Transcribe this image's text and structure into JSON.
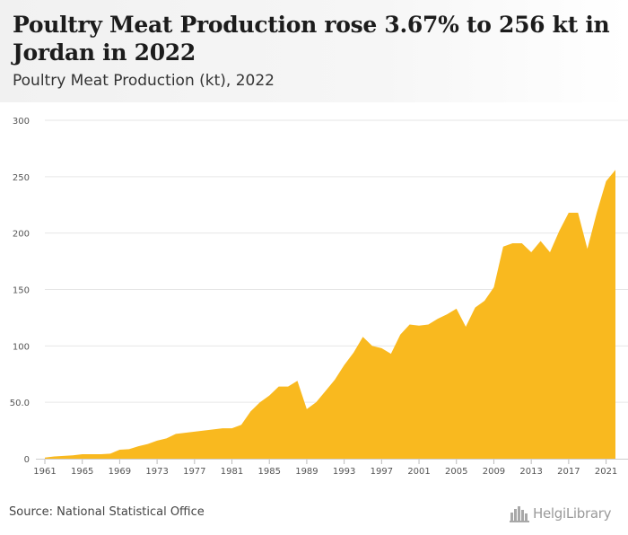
{
  "header": {
    "title": "Poultry Meat Production rose 3.67% to 256 kt in Jordan in 2022",
    "subtitle": "Poultry Meat Production (kt), 2022"
  },
  "footer": {
    "source": "Source: National Statistical Office",
    "brand": "HelgiLibrary"
  },
  "chart_data": {
    "type": "area",
    "title": "",
    "xlabel": "",
    "ylabel": "",
    "ylim": [
      0,
      300
    ],
    "yticks": [
      0,
      50,
      100,
      150,
      200,
      250,
      300
    ],
    "ytick_labels": [
      "0",
      "50.0",
      "100",
      "150",
      "200",
      "250",
      "300"
    ],
    "xticks": [
      1961,
      1965,
      1969,
      1973,
      1977,
      1981,
      1985,
      1989,
      1993,
      1997,
      2001,
      2005,
      2009,
      2013,
      2017,
      2021
    ],
    "grid": true,
    "color": "#f9b91f",
    "series": [
      {
        "x": [
          1961,
          1962,
          1963,
          1964,
          1965,
          1966,
          1967,
          1968,
          1969,
          1970,
          1971,
          1972,
          1973,
          1974,
          1975,
          1976,
          1977,
          1978,
          1979,
          1980,
          1981,
          1982,
          1983,
          1984,
          1985,
          1986,
          1987,
          1988,
          1989,
          1990,
          1991,
          1992,
          1993,
          1994,
          1995,
          1996,
          1997,
          1998,
          1999,
          2000,
          2001,
          2002,
          2003,
          2004,
          2005,
          2006,
          2007,
          2008,
          2009,
          2010,
          2011,
          2012,
          2013,
          2014,
          2015,
          2016,
          2017,
          2018,
          2019,
          2020,
          2021,
          2022
        ],
        "values": [
          1,
          2,
          2.5,
          3,
          4,
          4,
          4,
          4.5,
          8,
          8.5,
          11,
          13,
          16,
          18,
          22,
          23,
          24,
          25,
          26,
          27,
          27,
          30,
          42,
          50,
          56,
          64,
          64,
          69,
          44,
          50,
          60,
          70,
          83,
          94,
          108,
          100,
          98,
          93,
          110,
          119,
          118,
          119,
          124,
          128,
          133,
          117,
          134,
          140,
          152,
          188,
          191,
          191,
          183,
          193,
          183,
          202,
          218,
          218,
          186,
          218,
          246,
          256
        ]
      }
    ]
  }
}
